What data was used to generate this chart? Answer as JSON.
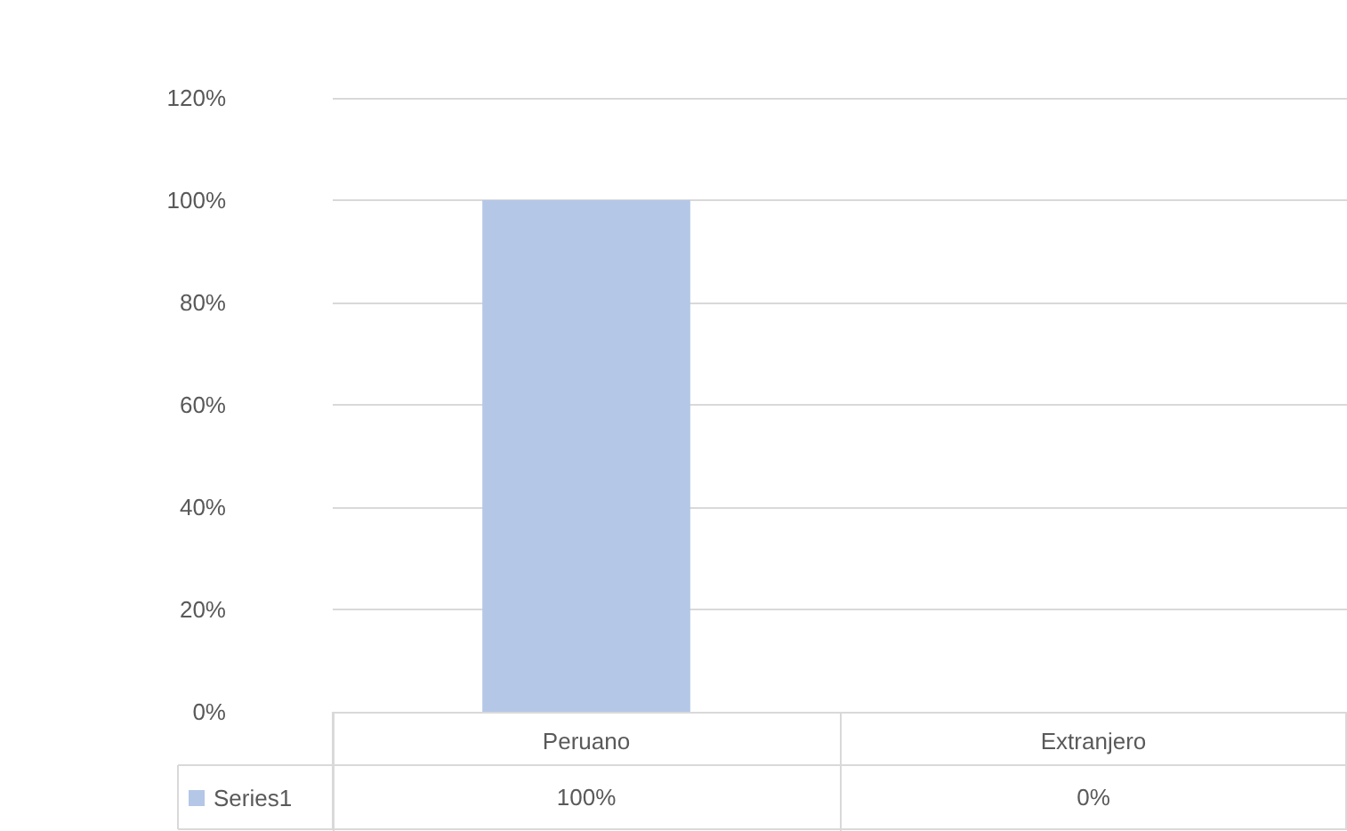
{
  "chart_data": {
    "type": "bar",
    "categories": [
      "Peruano",
      "Extranjero"
    ],
    "series": [
      {
        "name": "Series1",
        "color": "#b4c7e7",
        "values": [
          100,
          0
        ],
        "value_labels": [
          "100%",
          "0%"
        ]
      }
    ],
    "ylim": [
      0,
      120
    ],
    "yticks": [
      {
        "value": 0,
        "label": "0%"
      },
      {
        "value": 20,
        "label": "20%"
      },
      {
        "value": 40,
        "label": "40%"
      },
      {
        "value": 60,
        "label": "60%"
      },
      {
        "value": 80,
        "label": "80%"
      },
      {
        "value": 100,
        "label": "100%"
      },
      {
        "value": 120,
        "label": "120%"
      }
    ],
    "grid": "y",
    "legend": "bottom"
  }
}
